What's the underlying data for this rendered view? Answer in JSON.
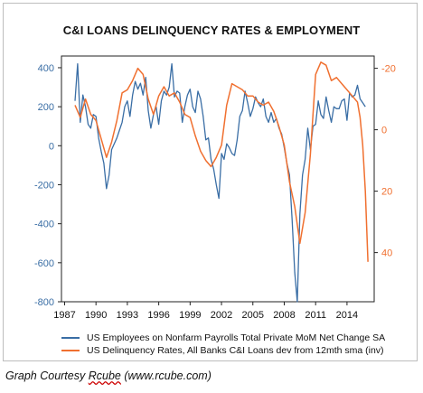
{
  "chart_data": {
    "type": "line",
    "title": "C&I LOANS DELINQUENCY RATES & EMPLOYMENT",
    "xlabel": "",
    "ylabel_left": "",
    "ylabel_right": "",
    "x_ticks": [
      "1987",
      "1990",
      "1993",
      "1996",
      "1999",
      "2002",
      "2005",
      "2008",
      "2011",
      "2014"
    ],
    "xlim": [
      1986.7,
      2016.6
    ],
    "left_axis": {
      "ylim": [
        -800,
        460
      ],
      "ticks": [
        "400",
        "200",
        "0",
        "-200",
        "-400",
        "-600",
        "-800"
      ],
      "tick_values": [
        400,
        200,
        0,
        -200,
        -400,
        -600,
        -800
      ]
    },
    "right_axis": {
      "ylim": [
        -24,
        56
      ],
      "inverted": true,
      "ticks": [
        "-20",
        "0",
        "20",
        "40"
      ],
      "tick_values": [
        -20,
        0,
        20,
        40
      ]
    },
    "grid": false,
    "legend_placement": "bottom",
    "series": [
      {
        "name": "US Employees on Nonfarm Payrolls Total Private MoM Net Change SA",
        "color": "#3a6ea5",
        "axis": "left",
        "x": [
          1988.0,
          1988.25,
          1988.5,
          1988.75,
          1989.0,
          1989.25,
          1989.5,
          1989.75,
          1990.0,
          1990.25,
          1990.5,
          1990.75,
          1991.0,
          1991.25,
          1991.5,
          1991.75,
          1992.0,
          1992.25,
          1992.5,
          1992.75,
          1993.0,
          1993.25,
          1993.5,
          1993.75,
          1994.0,
          1994.25,
          1994.5,
          1994.75,
          1995.0,
          1995.25,
          1995.5,
          1995.75,
          1996.0,
          1996.25,
          1996.5,
          1996.75,
          1997.0,
          1997.25,
          1997.5,
          1997.75,
          1998.0,
          1998.25,
          1998.5,
          1998.75,
          1999.0,
          1999.25,
          1999.5,
          1999.75,
          2000.0,
          2000.25,
          2000.5,
          2000.75,
          2001.0,
          2001.25,
          2001.5,
          2001.75,
          2002.0,
          2002.25,
          2002.5,
          2002.75,
          2003.0,
          2003.25,
          2003.5,
          2003.75,
          2004.0,
          2004.25,
          2004.5,
          2004.75,
          2005.0,
          2005.25,
          2005.5,
          2005.75,
          2006.0,
          2006.25,
          2006.5,
          2006.75,
          2007.0,
          2007.25,
          2007.5,
          2007.75,
          2008.0,
          2008.25,
          2008.5,
          2008.75,
          2009.0,
          2009.25,
          2009.5,
          2009.75,
          2010.0,
          2010.25,
          2010.5,
          2010.75,
          2011.0,
          2011.25,
          2011.5,
          2011.75,
          2012.0,
          2012.25,
          2012.5,
          2012.75,
          2013.0,
          2013.25,
          2013.5,
          2013.75,
          2014.0,
          2014.25,
          2014.5,
          2014.75,
          2015.0,
          2015.25,
          2015.5,
          2015.75
        ],
        "values": [
          230,
          420,
          120,
          260,
          200,
          110,
          90,
          160,
          150,
          40,
          -30,
          -90,
          -220,
          -150,
          -20,
          10,
          40,
          80,
          120,
          200,
          230,
          150,
          260,
          330,
          290,
          320,
          260,
          350,
          180,
          90,
          160,
          200,
          110,
          230,
          280,
          260,
          300,
          420,
          250,
          280,
          270,
          120,
          200,
          260,
          290,
          200,
          170,
          280,
          240,
          150,
          30,
          40,
          -70,
          -120,
          -200,
          -270,
          -40,
          -70,
          10,
          -10,
          -40,
          -50,
          30,
          150,
          180,
          280,
          220,
          150,
          190,
          250,
          220,
          200,
          240,
          150,
          120,
          170,
          120,
          140,
          90,
          60,
          -10,
          -90,
          -150,
          -380,
          -650,
          -800,
          -350,
          -150,
          -70,
          90,
          -20,
          100,
          110,
          230,
          160,
          140,
          250,
          180,
          120,
          200,
          190,
          190,
          230,
          240,
          130,
          270,
          250,
          260,
          310,
          240,
          220,
          200
        ]
      },
      {
        "name": "US Delinquency Rates, All Banks C&I Loans dev from 12mth sma (inv)",
        "color": "#f07030",
        "axis": "right",
        "x": [
          1988.0,
          1988.5,
          1989.0,
          1989.5,
          1990.0,
          1990.5,
          1991.0,
          1991.5,
          1992.0,
          1992.5,
          1993.0,
          1993.5,
          1994.0,
          1994.5,
          1995.0,
          1995.5,
          1996.0,
          1996.5,
          1997.0,
          1997.5,
          1998.0,
          1998.5,
          1999.0,
          1999.5,
          2000.0,
          2000.5,
          2001.0,
          2001.5,
          2002.0,
          2002.5,
          2003.0,
          2003.5,
          2004.0,
          2004.5,
          2005.0,
          2005.5,
          2006.0,
          2006.5,
          2007.0,
          2007.5,
          2008.0,
          2008.5,
          2009.0,
          2009.5,
          2010.0,
          2010.5,
          2011.0,
          2011.5,
          2012.0,
          2012.5,
          2013.0,
          2013.5,
          2014.0,
          2014.5,
          2015.0,
          2015.25,
          2015.5,
          2015.75,
          2016.0
        ],
        "values": [
          -8,
          -4,
          -10,
          -5,
          -3,
          3,
          9,
          4,
          -3,
          -12,
          -13,
          -16,
          -20,
          -18,
          -10,
          -5,
          -11,
          -14,
          -11,
          -12,
          -9,
          -5,
          -4,
          2,
          7,
          10,
          12,
          9,
          5,
          -8,
          -15,
          -14,
          -13,
          -11,
          -11,
          -9,
          -8,
          -9,
          -6,
          -1,
          5,
          17,
          25,
          37,
          27,
          8,
          -18,
          -22,
          -21,
          -16,
          -17,
          -15,
          -13,
          -11,
          -9,
          -4,
          5,
          20,
          43
        ]
      }
    ]
  },
  "caption": {
    "prefix": "Graph Courtesy ",
    "name": "Rcube",
    "suffix": " (www.rcube.com)"
  }
}
